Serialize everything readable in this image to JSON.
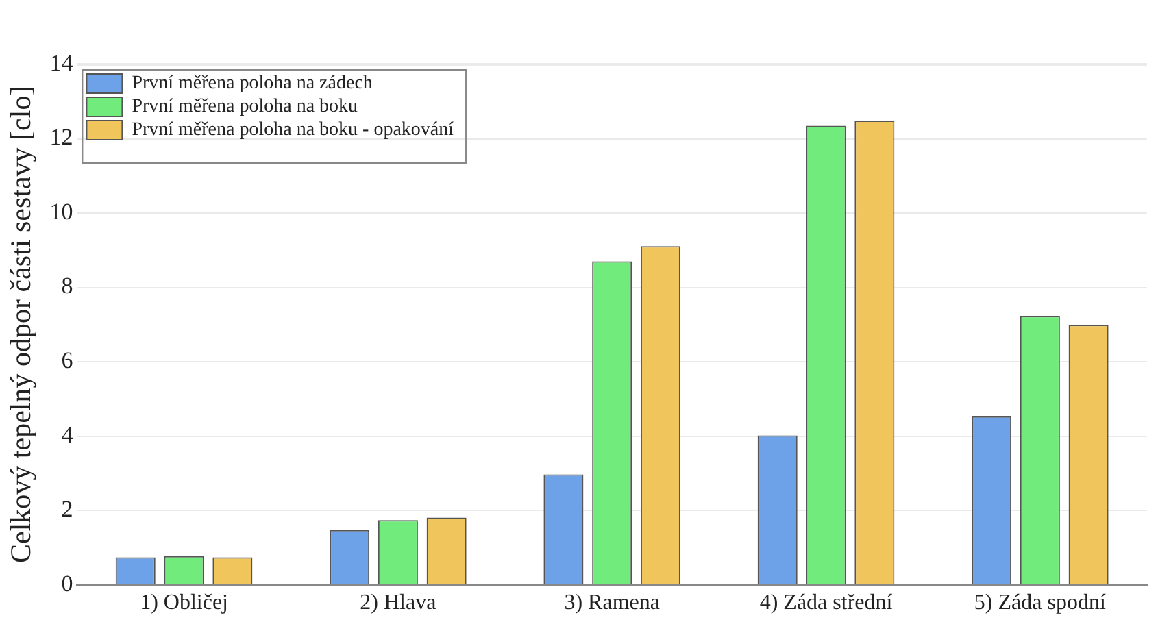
{
  "chart_data": {
    "type": "bar",
    "ylabel": "Celkový tepelný odpor části sestavy [clo]",
    "categories": [
      "1) Obličej",
      "2) Hlava",
      "3) Ramena",
      "4) Záda střední",
      "5) Záda spodní"
    ],
    "series": [
      {
        "name": "První měřena poloha na zádech",
        "color": "#6ea2e8",
        "values": [
          0.74,
          1.47,
          2.97,
          4.02,
          4.53
        ]
      },
      {
        "name": "První měřena poloha na boku",
        "color": "#70eb7c",
        "values": [
          0.77,
          1.74,
          8.7,
          12.35,
          7.23
        ]
      },
      {
        "name": "První měřena poloha na boku - opakování",
        "color": "#f0c55c",
        "values": [
          0.74,
          1.81,
          9.11,
          12.49,
          6.99
        ]
      }
    ],
    "ylim": [
      0,
      14
    ],
    "yticks": [
      0,
      2,
      4,
      6,
      8,
      10,
      12,
      14
    ],
    "grid": "y",
    "legend": "top left"
  }
}
